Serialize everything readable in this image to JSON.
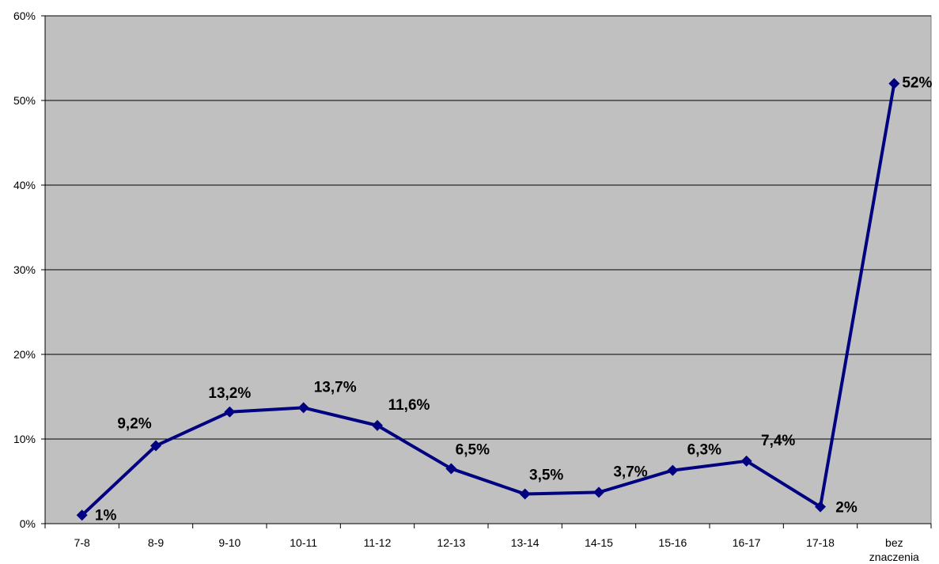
{
  "chart_data": {
    "type": "line",
    "categories": [
      "7-8",
      "8-9",
      "9-10",
      "10-11",
      "11-12",
      "12-13",
      "13-14",
      "14-15",
      "15-16",
      "16-17",
      "17-18",
      "bez znaczenia"
    ],
    "values": [
      1.0,
      9.2,
      13.2,
      13.7,
      11.6,
      6.5,
      3.5,
      3.7,
      6.3,
      7.4,
      2.0,
      52.0
    ],
    "data_labels": [
      "1%",
      "9,2%",
      "13,2%",
      "13,7%",
      "11,6%",
      "6,5%",
      "3,5%",
      "3,7%",
      "6,3%",
      "7,4%",
      "2%",
      "52%"
    ],
    "y_ticks": [
      "0%",
      "10%",
      "20%",
      "30%",
      "40%",
      "50%",
      "60%"
    ],
    "ylim": [
      0,
      60
    ],
    "grid": true,
    "title": "",
    "xlabel": "",
    "ylabel": "",
    "colors": {
      "plot_background": "#c0c0c0",
      "line": "#000080",
      "marker": "#000080",
      "gridline": "#000000"
    }
  }
}
